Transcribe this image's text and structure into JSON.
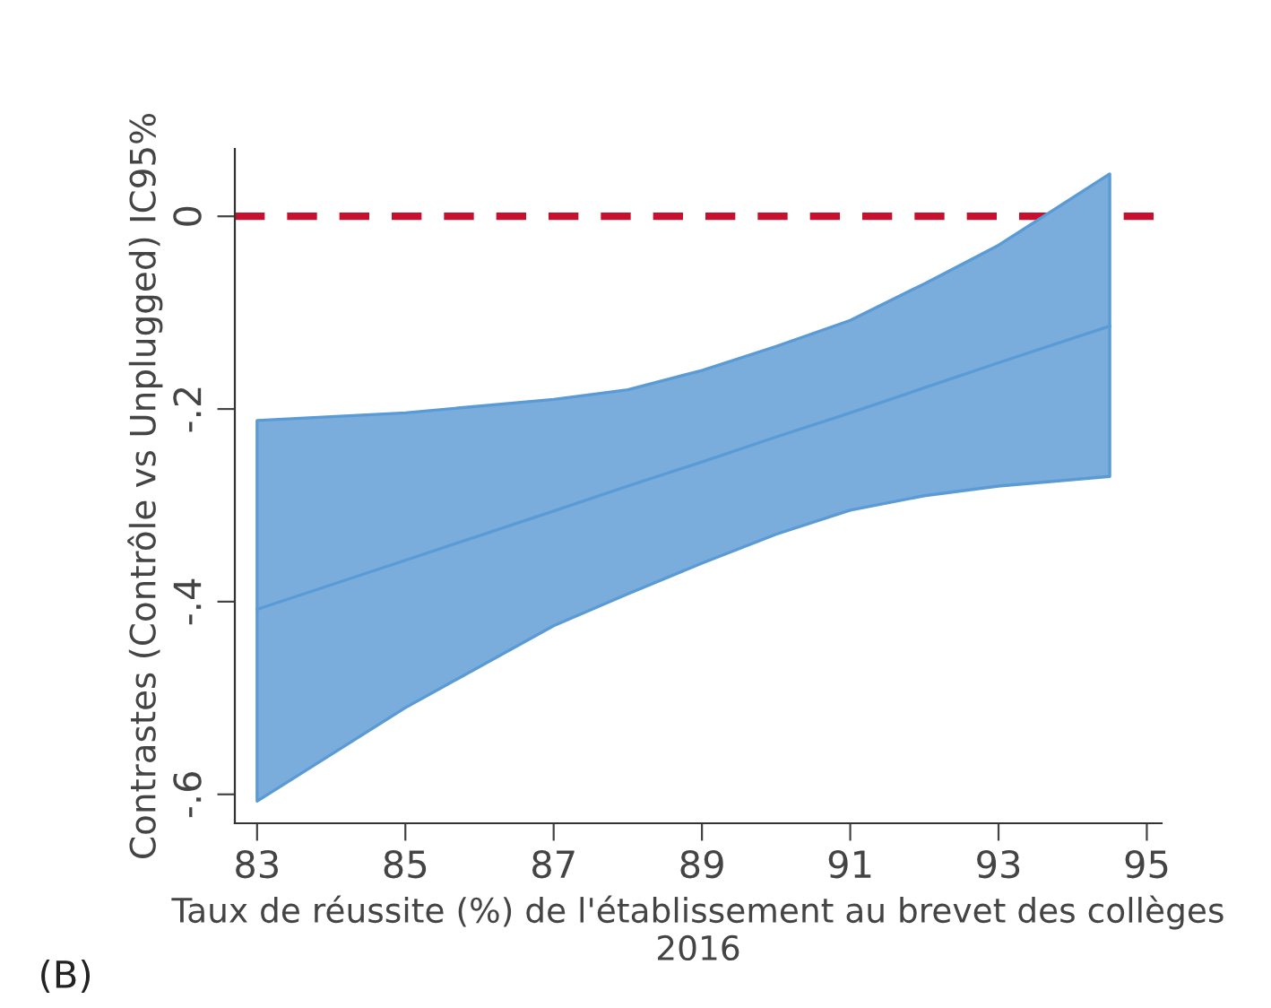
{
  "chart_data": {
    "type": "line",
    "xlabel": "Taux de réussite (%) de l'établissement au brevet des collèges 2016",
    "ylabel": "Contrastes (Contrôle vs Unplugged) IC95%",
    "x": [
      83,
      85,
      87,
      88,
      89,
      90,
      91,
      92,
      93,
      94.5
    ],
    "series": [
      {
        "color": "#5b9bd5",
        "values": [
          -0.408,
          -0.357,
          -0.306,
          -0.28,
          -0.255,
          -0.229,
          -0.204,
          -0.178,
          -0.152,
          -0.114
        ],
        "lower": [
          -0.607,
          -0.51,
          -0.425,
          -0.392,
          -0.36,
          -0.33,
          -0.305,
          -0.29,
          -0.28,
          -0.27
        ],
        "upper": [
          -0.212,
          -0.204,
          -0.19,
          -0.18,
          -0.16,
          -0.135,
          -0.108,
          -0.07,
          -0.03,
          0.044
        ]
      }
    ],
    "xlim": [
      82.7,
      95.2
    ],
    "xticks": [
      83,
      85,
      87,
      89,
      91,
      93,
      95
    ],
    "ylim": [
      -0.63,
      0.07
    ],
    "yticks": [
      {
        "value": 0,
        "label": "0"
      },
      {
        "value": -0.2,
        "label": "-.2"
      },
      {
        "value": -0.4,
        "label": "-.4"
      },
      {
        "value": -0.6,
        "label": "-.6"
      }
    ],
    "ref_lines": [
      {
        "axis": "y",
        "value": 0,
        "color": "#c8102e",
        "line_style": "dashed"
      }
    ],
    "grid": false,
    "marker": "none",
    "line_style": "solid",
    "annotations": [
      "(B)"
    ]
  }
}
